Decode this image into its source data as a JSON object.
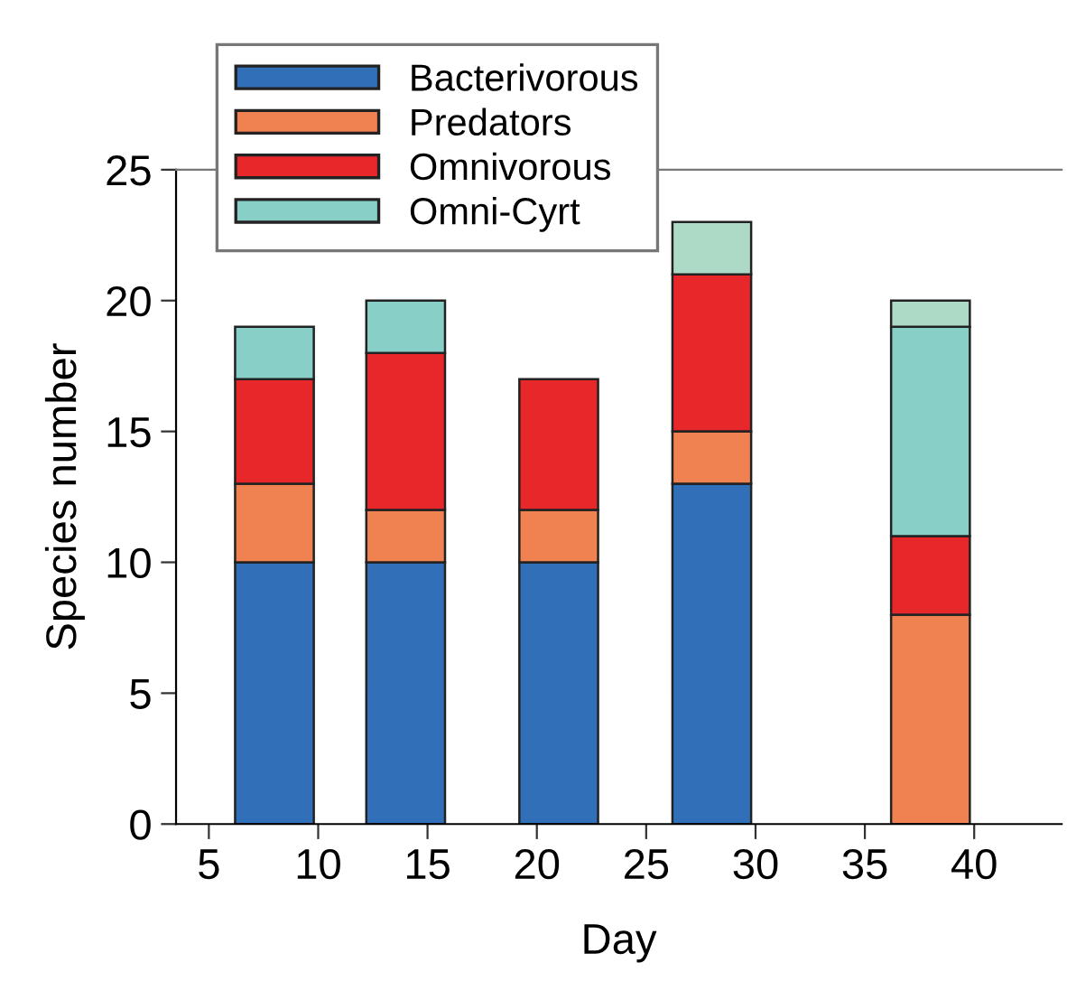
{
  "chart_data": {
    "type": "bar",
    "stacked": true,
    "xlabel": "Day",
    "ylabel": "Species number",
    "x": [
      8,
      14,
      21,
      28,
      38
    ],
    "series": [
      {
        "name": "Bacterivorous",
        "color": "#3170b8",
        "values": [
          10,
          10,
          10,
          13,
          null
        ]
      },
      {
        "name": "Predators",
        "color": "#f08150",
        "values": [
          3,
          2,
          2,
          2,
          8
        ]
      },
      {
        "name": "Omnivorous",
        "color": "#e8272b",
        "values": [
          4,
          6,
          5,
          6,
          3
        ]
      },
      {
        "name": "Omni-Cyrt",
        "color": "#88cfc8",
        "values": [
          2,
          2,
          null,
          null,
          8
        ]
      },
      {
        "color": "#acdac6",
        "values": [
          null,
          null,
          null,
          2,
          1
        ]
      }
    ],
    "xlim": [
      3.5,
      44
    ],
    "xticks": [
      5,
      10,
      15,
      20,
      25,
      30,
      35,
      40
    ],
    "ylim": [
      0,
      25
    ],
    "yticks": [
      0,
      5,
      10,
      15,
      20,
      25
    ],
    "grid": false,
    "legend": "top left"
  }
}
